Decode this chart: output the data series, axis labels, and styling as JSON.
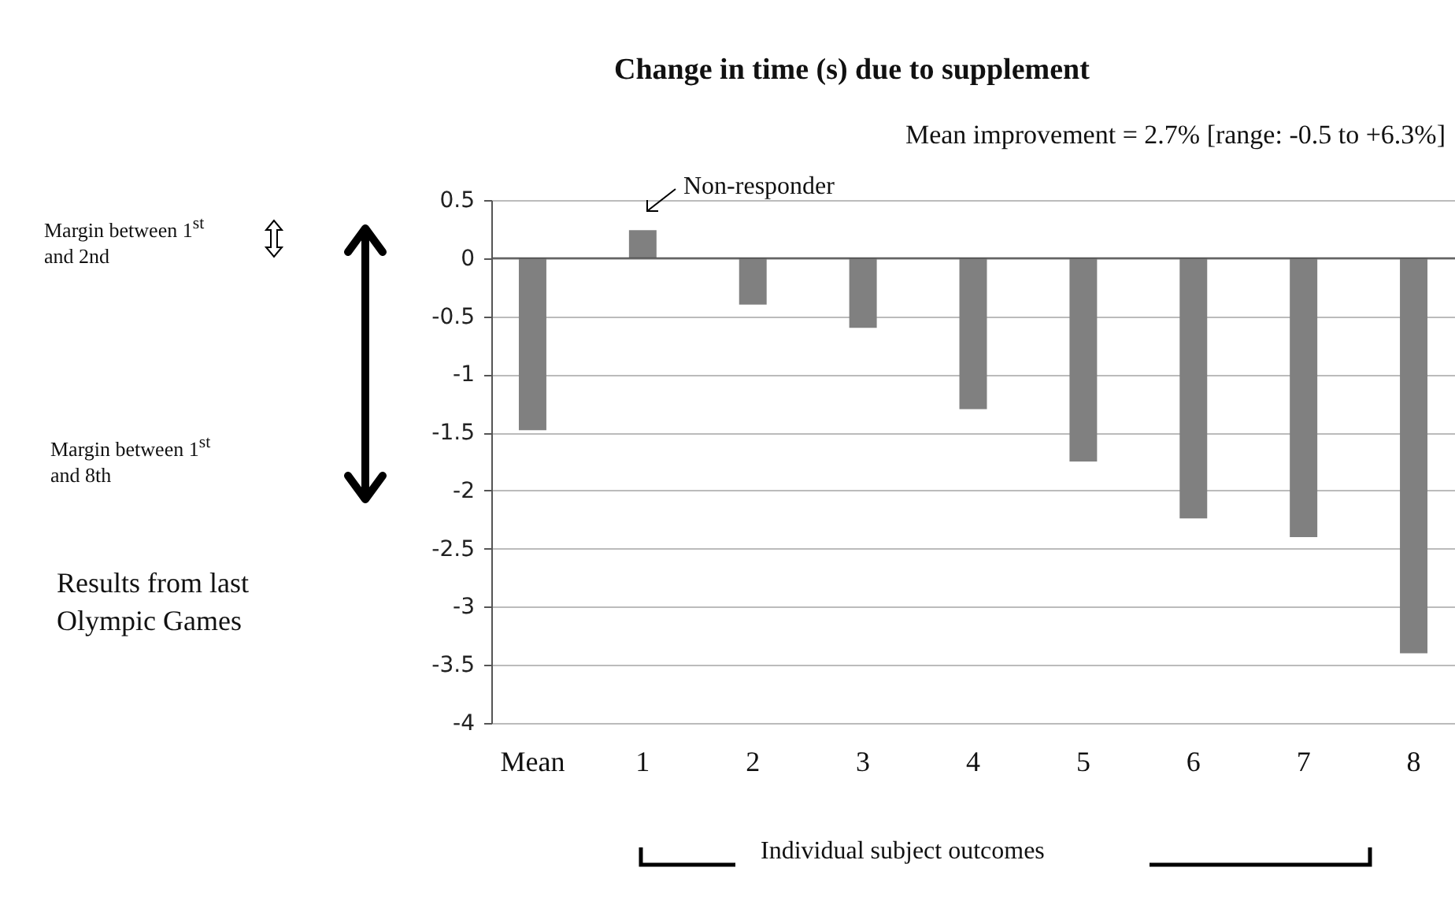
{
  "chart_data": {
    "type": "bar",
    "title": "Change in time (s) due to supplement",
    "subtitle": "Mean improvement = 2.7% [range: -0.5 to +6.3%]",
    "categories": [
      "Mean",
      "1",
      "2",
      "3",
      "4",
      "5",
      "6",
      "7",
      "8"
    ],
    "values": [
      -1.48,
      0.24,
      -0.4,
      -0.6,
      -1.3,
      -1.75,
      -2.24,
      -2.4,
      -3.4
    ],
    "color": "#808080",
    "ylim": [
      -4,
      0.5
    ],
    "yticks": [
      -4,
      -3.5,
      -3,
      -2.5,
      -2,
      -1.5,
      -1,
      -0.5,
      0,
      0.5
    ],
    "grid": "y",
    "annotations": [
      "Non-responder",
      "Margin between 1$^{st}$ and 2nd",
      "Margin between 1$^{st}$ and 8th",
      "Results from last Olympic Games",
      "Individual subject outcomes"
    ]
  }
}
